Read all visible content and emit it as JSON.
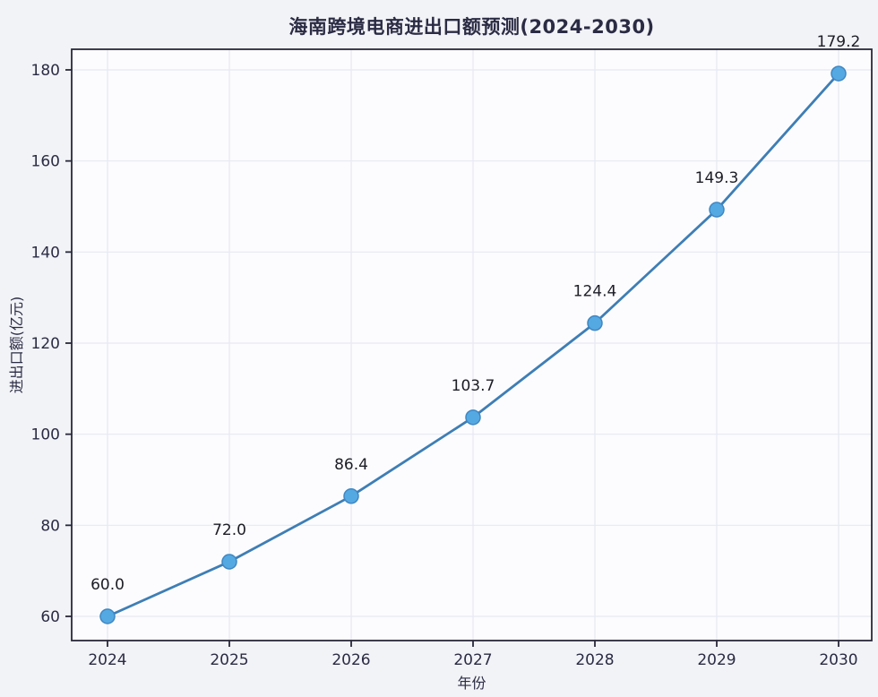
{
  "chart_data": {
    "type": "line",
    "title": "海南跨境电商进出口额预测(2024-2030)",
    "xlabel": "年份",
    "ylabel": "进出口额(亿元)",
    "categories": [
      "2024",
      "2025",
      "2026",
      "2027",
      "2028",
      "2029",
      "2030"
    ],
    "series": [
      {
        "name": "进出口额",
        "values": [
          60.0,
          72.0,
          86.4,
          103.7,
          124.4,
          149.3,
          179.2
        ]
      }
    ],
    "point_labels": [
      "60.0",
      "72.0",
      "86.4",
      "103.7",
      "124.4",
      "149.3",
      "179.2"
    ],
    "yticks": [
      60,
      80,
      100,
      120,
      140,
      160,
      180
    ],
    "ylim": [
      60,
      180
    ],
    "grid": true,
    "legend_position": "none",
    "colors": {
      "line": "#3e7eb5",
      "marker_fill": "#55a9e3",
      "marker_edge": "#3f87c2",
      "grid": "#e7e9f1",
      "spine": "#28283a",
      "tick_text": "#2b2b44",
      "point_label_text": "#1c1c26",
      "figure_bg": "#f2f3f7",
      "plot_bg": "#fcfcfe"
    }
  }
}
